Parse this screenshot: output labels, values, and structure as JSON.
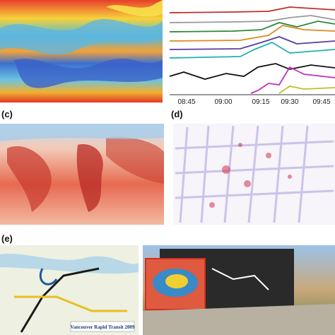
{
  "panels": {
    "c": {
      "label": "(c)"
    },
    "d": {
      "label": "(d)"
    },
    "e": {
      "label": "(e)"
    }
  },
  "time_axis": {
    "ticks": [
      "08:45",
      "09:00",
      "09:15",
      "09:30",
      "09:45"
    ]
  },
  "transit_map": {
    "title": "Vancouver Rapid Transit 2009"
  }
}
